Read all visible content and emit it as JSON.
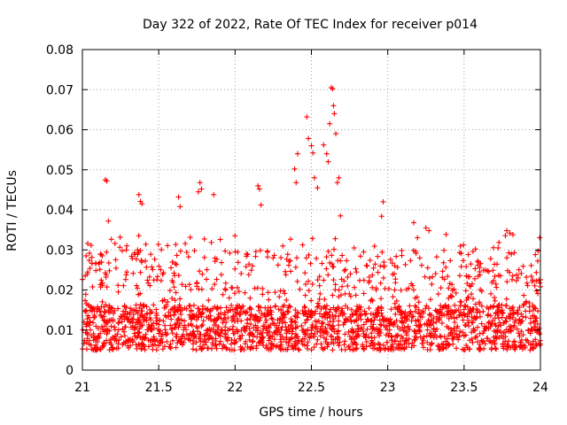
{
  "chart_data": {
    "type": "scatter",
    "title": "Day 322 of 2022, Rate Of TEC Index for receiver p014",
    "xlabel": "GPS time / hours",
    "ylabel": "ROTI / TECUs",
    "xlim": [
      21,
      24
    ],
    "ylim": [
      0,
      0.08
    ],
    "x_ticks": [
      "21",
      "21.5",
      "22",
      "22.5",
      "23",
      "23.5",
      "24"
    ],
    "y_ticks": [
      "0",
      "0.01",
      "0.02",
      "0.03",
      "0.04",
      "0.05",
      "0.06",
      "0.07",
      "0.08"
    ],
    "marker": "+",
    "color": "#ff0000",
    "grid": true,
    "series": [
      {
        "name": "ROTI",
        "note": "dense point cloud; representative sample of ~2000 points described by baseline band plus notable peaks",
        "baseline_band": [
          0.005,
          0.02
        ],
        "points": [
          [
            21.15,
            0.0475
          ],
          [
            21.16,
            0.0472
          ],
          [
            21.17,
            0.0372
          ],
          [
            21.37,
            0.0438
          ],
          [
            21.38,
            0.0421
          ],
          [
            21.39,
            0.0415
          ],
          [
            21.63,
            0.0432
          ],
          [
            21.64,
            0.0408
          ],
          [
            21.77,
            0.0468
          ],
          [
            21.78,
            0.0452
          ],
          [
            21.76,
            0.0445
          ],
          [
            21.86,
            0.0438
          ],
          [
            22.15,
            0.046
          ],
          [
            22.16,
            0.0452
          ],
          [
            22.17,
            0.0412
          ],
          [
            22.39,
            0.0502
          ],
          [
            22.4,
            0.0468
          ],
          [
            22.41,
            0.054
          ],
          [
            22.47,
            0.0632
          ],
          [
            22.48,
            0.0578
          ],
          [
            22.5,
            0.056
          ],
          [
            22.51,
            0.0542
          ],
          [
            22.52,
            0.048
          ],
          [
            22.54,
            0.0455
          ],
          [
            22.58,
            0.0562
          ],
          [
            22.6,
            0.054
          ],
          [
            22.61,
            0.052
          ],
          [
            22.62,
            0.0615
          ],
          [
            22.63,
            0.0705
          ],
          [
            22.64,
            0.0702
          ],
          [
            22.645,
            0.066
          ],
          [
            22.65,
            0.064
          ],
          [
            22.66,
            0.059
          ],
          [
            22.67,
            0.0468
          ],
          [
            22.68,
            0.048
          ],
          [
            22.69,
            0.0385
          ],
          [
            22.97,
            0.042
          ],
          [
            22.96,
            0.0384
          ],
          [
            23.17,
            0.0368
          ],
          [
            23.25,
            0.0355
          ],
          [
            23.27,
            0.0348
          ],
          [
            23.78,
            0.0348
          ],
          [
            23.8,
            0.0342
          ],
          [
            23.82,
            0.0338
          ],
          [
            23.99,
            0.0225
          ],
          [
            24.0,
            0.0208
          ]
        ]
      }
    ]
  }
}
